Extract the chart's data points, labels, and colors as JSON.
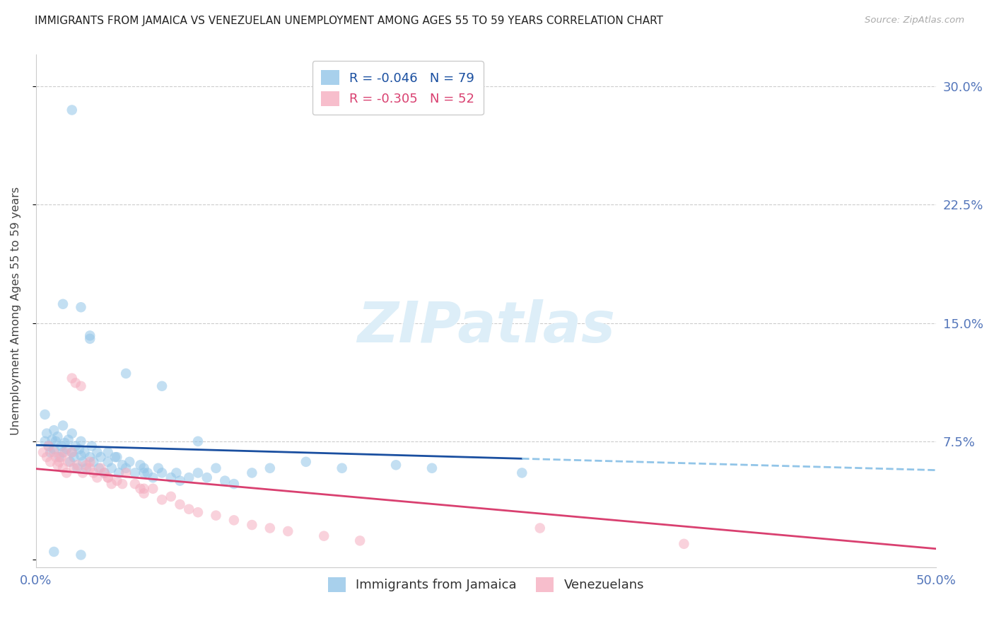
{
  "title": "IMMIGRANTS FROM JAMAICA VS VENEZUELAN UNEMPLOYMENT AMONG AGES 55 TO 59 YEARS CORRELATION CHART",
  "source": "Source: ZipAtlas.com",
  "ylabel": "Unemployment Among Ages 55 to 59 years",
  "xlim": [
    0.0,
    0.5
  ],
  "ylim": [
    -0.005,
    0.32
  ],
  "yticks": [
    0.0,
    0.075,
    0.15,
    0.225,
    0.3
  ],
  "ytick_labels": [
    "",
    "7.5%",
    "15.0%",
    "22.5%",
    "30.0%"
  ],
  "xticks": [
    0.0,
    0.125,
    0.25,
    0.375,
    0.5
  ],
  "xtick_labels": [
    "0.0%",
    "",
    "",
    "",
    "50.0%"
  ],
  "legend_title_blue": "Immigrants from Jamaica",
  "legend_title_pink": "Venezuelans",
  "r_jamaica": -0.046,
  "n_jamaica": 79,
  "r_venezuelan": -0.305,
  "n_venezuelan": 52,
  "blue_color": "#92c5e8",
  "pink_color": "#f5aec0",
  "blue_line_color": "#1a4fa0",
  "pink_line_color": "#d94070",
  "blue_dash_color": "#92c5e8",
  "watermark_color": "#ddeef8",
  "bg_color": "#ffffff",
  "grid_color": "#cccccc",
  "title_color": "#222222",
  "ylabel_color": "#444444",
  "axis_tick_color": "#5577bb",
  "source_color": "#aaaaaa",
  "scatter_blue_x": [
    0.005,
    0.006,
    0.007,
    0.008,
    0.009,
    0.01,
    0.01,
    0.011,
    0.012,
    0.013,
    0.014,
    0.015,
    0.015,
    0.016,
    0.017,
    0.018,
    0.019,
    0.02,
    0.02,
    0.021,
    0.022,
    0.023,
    0.024,
    0.025,
    0.025,
    0.026,
    0.027,
    0.028,
    0.03,
    0.031,
    0.032,
    0.034,
    0.035,
    0.036,
    0.038,
    0.04,
    0.04,
    0.042,
    0.044,
    0.046,
    0.048,
    0.05,
    0.052,
    0.055,
    0.058,
    0.06,
    0.062,
    0.065,
    0.068,
    0.07,
    0.075,
    0.078,
    0.08,
    0.085,
    0.09,
    0.095,
    0.1,
    0.105,
    0.11,
    0.12,
    0.025,
    0.03,
    0.02,
    0.05,
    0.07,
    0.09,
    0.13,
    0.15,
    0.17,
    0.2,
    0.22,
    0.27,
    0.005,
    0.015,
    0.03,
    0.045,
    0.06,
    0.01,
    0.025
  ],
  "scatter_blue_y": [
    0.075,
    0.08,
    0.072,
    0.068,
    0.076,
    0.07,
    0.082,
    0.075,
    0.078,
    0.065,
    0.072,
    0.068,
    0.085,
    0.074,
    0.07,
    0.076,
    0.062,
    0.068,
    0.08,
    0.065,
    0.072,
    0.058,
    0.07,
    0.066,
    0.075,
    0.062,
    0.068,
    0.058,
    0.065,
    0.072,
    0.062,
    0.068,
    0.058,
    0.065,
    0.055,
    0.062,
    0.068,
    0.058,
    0.065,
    0.055,
    0.06,
    0.058,
    0.062,
    0.055,
    0.06,
    0.058,
    0.055,
    0.052,
    0.058,
    0.055,
    0.052,
    0.055,
    0.05,
    0.052,
    0.055,
    0.052,
    0.058,
    0.05,
    0.048,
    0.055,
    0.16,
    0.14,
    0.285,
    0.118,
    0.11,
    0.075,
    0.058,
    0.062,
    0.058,
    0.06,
    0.058,
    0.055,
    0.092,
    0.162,
    0.142,
    0.065,
    0.055,
    0.005,
    0.003
  ],
  "scatter_pink_x": [
    0.004,
    0.006,
    0.008,
    0.01,
    0.011,
    0.012,
    0.013,
    0.015,
    0.016,
    0.017,
    0.018,
    0.02,
    0.021,
    0.022,
    0.023,
    0.025,
    0.026,
    0.028,
    0.03,
    0.032,
    0.034,
    0.036,
    0.038,
    0.04,
    0.042,
    0.045,
    0.048,
    0.05,
    0.055,
    0.058,
    0.06,
    0.065,
    0.07,
    0.075,
    0.08,
    0.085,
    0.09,
    0.1,
    0.11,
    0.12,
    0.13,
    0.14,
    0.16,
    0.18,
    0.007,
    0.014,
    0.02,
    0.03,
    0.04,
    0.06,
    0.36,
    0.28
  ],
  "scatter_pink_y": [
    0.068,
    0.065,
    0.062,
    0.068,
    0.065,
    0.06,
    0.062,
    0.058,
    0.068,
    0.055,
    0.062,
    0.115,
    0.058,
    0.112,
    0.06,
    0.11,
    0.055,
    0.06,
    0.058,
    0.055,
    0.052,
    0.058,
    0.055,
    0.052,
    0.048,
    0.05,
    0.048,
    0.055,
    0.048,
    0.045,
    0.042,
    0.045,
    0.038,
    0.04,
    0.035,
    0.032,
    0.03,
    0.028,
    0.025,
    0.022,
    0.02,
    0.018,
    0.015,
    0.012,
    0.072,
    0.065,
    0.068,
    0.062,
    0.052,
    0.045,
    0.01,
    0.02
  ]
}
